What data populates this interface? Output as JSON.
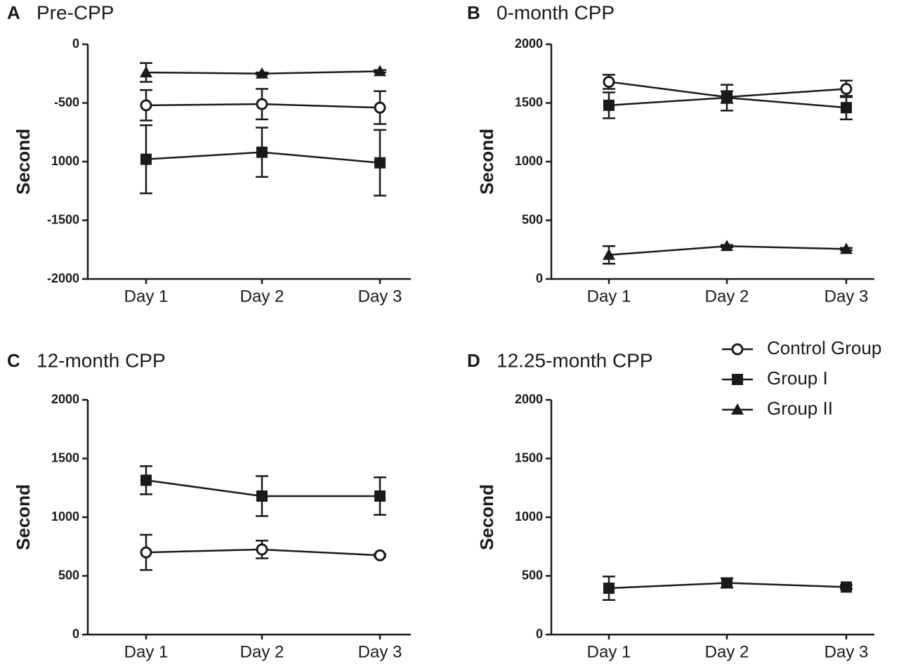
{
  "chart_data": [
    {
      "type": "line",
      "panel": "A",
      "title": "Pre-CPP",
      "ylabel": "Second",
      "categories": [
        "Day 1",
        "Day 2",
        "Day 3"
      ],
      "ylim": [
        -2000,
        0
      ],
      "yticks": [
        0,
        -500,
        {
          "value": -1000,
          "label": "1000"
        },
        -1500,
        -2000
      ],
      "series": [
        {
          "name": "Control Group",
          "marker": "circle",
          "color": "#1a1a1a",
          "values": [
            -520,
            -510,
            -540
          ],
          "errors": [
            130,
            130,
            140
          ]
        },
        {
          "name": "Group I",
          "marker": "square",
          "color": "#1a1a1a",
          "values": [
            -980,
            -920,
            -1010
          ],
          "errors": [
            290,
            210,
            280
          ]
        },
        {
          "name": "Group II",
          "marker": "triangle",
          "color": "#1a1a1a",
          "values": [
            -240,
            -250,
            -230
          ],
          "errors": [
            80,
            10,
            10
          ]
        }
      ]
    },
    {
      "type": "line",
      "panel": "B",
      "title": "0-month CPP",
      "ylabel": "Second",
      "categories": [
        "Day 1",
        "Day 2",
        "Day 3"
      ],
      "ylim": [
        0,
        2000
      ],
      "yticks": [
        0,
        500,
        1000,
        1500,
        2000
      ],
      "series": [
        {
          "name": "Control Group",
          "marker": "circle",
          "color": "#1a1a1a",
          "values": [
            1680,
            1550,
            1620
          ],
          "errors": [
            60,
            50,
            70
          ]
        },
        {
          "name": "Group I",
          "marker": "square",
          "color": "#1a1a1a",
          "values": [
            1480,
            1545,
            1460
          ],
          "errors": [
            110,
            110,
            100
          ]
        },
        {
          "name": "Group II",
          "marker": "triangle",
          "color": "#1a1a1a",
          "values": [
            205,
            280,
            255
          ],
          "errors": [
            75,
            10,
            10
          ]
        }
      ]
    },
    {
      "type": "line",
      "panel": "C",
      "title": "12-month CPP",
      "ylabel": "Second",
      "categories": [
        "Day 1",
        "Day 2",
        "Day 3"
      ],
      "ylim": [
        0,
        2000
      ],
      "yticks": [
        0,
        500,
        1000,
        1500,
        2000
      ],
      "series": [
        {
          "name": "Control Group",
          "marker": "circle",
          "color": "#1a1a1a",
          "values": [
            700,
            725,
            675
          ],
          "errors": [
            150,
            75,
            10
          ]
        },
        {
          "name": "Group I",
          "marker": "square",
          "color": "#1a1a1a",
          "values": [
            1315,
            1180,
            1180
          ],
          "errors": [
            120,
            170,
            160
          ]
        }
      ]
    },
    {
      "type": "line",
      "panel": "D",
      "title": "12.25-month CPP",
      "ylabel": "Second",
      "categories": [
        "Day 1",
        "Day 2",
        "Day 3"
      ],
      "ylim": [
        0,
        2000
      ],
      "yticks": [
        0,
        500,
        1000,
        1500,
        2000
      ],
      "series": [
        {
          "name": "Group I",
          "marker": "square",
          "color": "#1a1a1a",
          "values": [
            395,
            440,
            405
          ],
          "errors": [
            100,
            40,
            15
          ]
        }
      ]
    }
  ],
  "legend": {
    "entries": [
      {
        "name": "Control Group",
        "marker": "circle",
        "color": "#1a1a1a"
      },
      {
        "name": "Group I",
        "marker": "square",
        "color": "#1a1a1a"
      },
      {
        "name": "Group II",
        "marker": "triangle",
        "color": "#1a1a1a"
      }
    ]
  }
}
